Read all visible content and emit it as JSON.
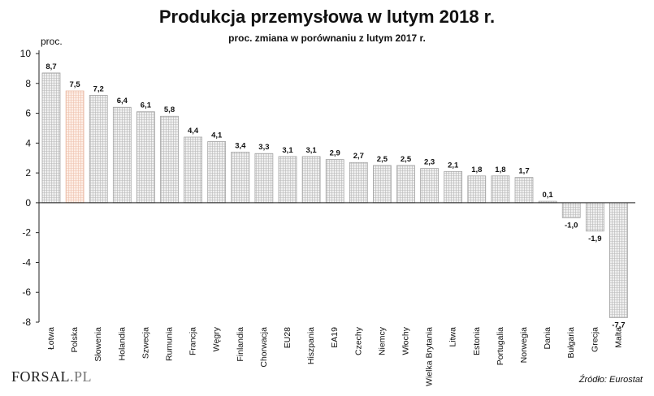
{
  "chart_data": {
    "type": "bar",
    "title": "Produkcja przemysłowa w lutym 2018 r.",
    "subtitle": "proc. zmiana w porównaniu z lutym 2017 r.",
    "ylabel": "proc.",
    "xlabel": "",
    "ylim": [
      -8,
      10
    ],
    "yticks": [
      10,
      8,
      6,
      4,
      2,
      0,
      -2,
      -4,
      -6,
      -8
    ],
    "categories": [
      "Łotwa",
      "Polska",
      "Słowenia",
      "Holandia",
      "Szwecja",
      "Rumunia",
      "Francja",
      "Węgry",
      "Finlandia",
      "Chorwacja",
      "EU28",
      "Hiszpania",
      "EA19",
      "Czechy",
      "Niemcy",
      "Włochy",
      "Wielka Brytania",
      "Litwa",
      "Estonia",
      "Portugalia",
      "Norwegia",
      "Dania",
      "Bułgaria",
      "Grecja",
      "Malta"
    ],
    "values": [
      8.7,
      7.5,
      7.2,
      6.4,
      6.1,
      5.8,
      4.4,
      4.1,
      3.4,
      3.3,
      3.1,
      3.1,
      2.9,
      2.7,
      2.5,
      2.5,
      2.3,
      2.1,
      1.8,
      1.8,
      1.7,
      0.1,
      -1.0,
      -1.9,
      -7.7
    ],
    "value_labels": [
      "8,7",
      "7,5",
      "7,2",
      "6,4",
      "6,1",
      "5,8",
      "4,4",
      "4,1",
      "3,4",
      "3,3",
      "3,1",
      "3,1",
      "2,9",
      "2,7",
      "2,5",
      "2,5",
      "2,3",
      "2,1",
      "1,8",
      "1,8",
      "1,7",
      "0,1",
      "-1,0",
      "-1,9",
      "-7,7"
    ],
    "highlight_category": "Polska",
    "grid": false,
    "colors": {
      "bar_fill": "#e6e6e6",
      "bar_edge": "#9a9a9a",
      "highlight_fill": "#fbe6dc",
      "highlight_edge": "#e8b39c",
      "axis": "#222222"
    }
  },
  "footer": {
    "logo_text": "FORSAL",
    "logo_suffix": ".PL",
    "source": "Źródło: Eurostat"
  }
}
